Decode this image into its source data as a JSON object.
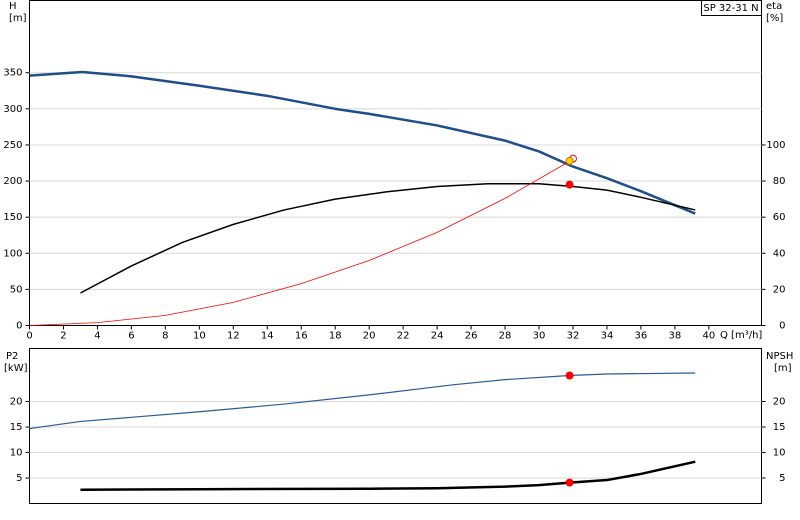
{
  "chart_data": [
    {
      "type": "line",
      "annotation": "SP 32-31 N",
      "ylabel": [
        "H",
        "[m]"
      ],
      "y2label": [
        "eta",
        "[%]"
      ],
      "xlabel": "Q [m³/h]",
      "xlim": [
        0,
        43.1
      ],
      "xticks": [
        0,
        2,
        4,
        6,
        8,
        10,
        12,
        14,
        16,
        18,
        20,
        22,
        24,
        26,
        28,
        30,
        32,
        34,
        36,
        38,
        40
      ],
      "ylim": [
        0,
        450
      ],
      "yticks": [
        0,
        50,
        100,
        150,
        200,
        250,
        300,
        350
      ],
      "y2lim": [
        0,
        180
      ],
      "y2ticks": [
        0,
        20,
        40,
        60,
        80,
        100
      ],
      "grid": true,
      "series": [
        {
          "color": "#1f4e8c",
          "width": 2.5,
          "x": [
            0,
            3.1,
            6,
            10,
            14,
            18,
            20,
            24,
            28,
            30,
            32,
            34,
            36,
            39.2
          ],
          "values": [
            346,
            351,
            345,
            332,
            318,
            300,
            293,
            277,
            256,
            241,
            220,
            204,
            186,
            155
          ]
        },
        {
          "color": "#000000",
          "width": 1.5,
          "axis": "y2",
          "x": [
            3,
            6,
            9,
            12,
            15,
            18,
            21,
            24,
            27,
            30,
            32,
            34,
            36,
            39.2
          ],
          "values": [
            18,
            33,
            46,
            56,
            64,
            70,
            74,
            77,
            78.5,
            78.5,
            77,
            75,
            71,
            64
          ]
        },
        {
          "color": "#ff0000",
          "width": 0.8,
          "x": [
            0,
            4,
            8,
            12,
            16,
            20,
            24,
            28,
            32
          ],
          "values": [
            0,
            4,
            14,
            32,
            58,
            90,
            129,
            176,
            230
          ]
        }
      ],
      "points": [
        {
          "x": 32,
          "y": 231,
          "color": "none",
          "stroke": "#ff0000"
        },
        {
          "x": 31.8,
          "y": 228,
          "color": "#ffd500",
          "stroke": "#e07000"
        },
        {
          "x": 31.8,
          "y": 78,
          "axis": "y2",
          "color": "#ff0000",
          "stroke": "#ff0000"
        }
      ]
    },
    {
      "type": "line",
      "ylabel": [
        "P2",
        "[kW]"
      ],
      "y2label": [
        "NPSH",
        "[m]"
      ],
      "xlim": [
        0,
        43.1
      ],
      "ylim": [
        0,
        30.4
      ],
      "yticks": [
        5,
        10,
        15,
        20
      ],
      "y2lim": [
        0,
        30.4
      ],
      "y2ticks": [
        5,
        10,
        15,
        20
      ],
      "grid": true,
      "series": [
        {
          "color": "#2a5a9a",
          "width": 1.2,
          "x": [
            0,
            3,
            6,
            10,
            15,
            20,
            25,
            28,
            31.8,
            34,
            39.2
          ],
          "values": [
            14.7,
            16.1,
            16.9,
            18.0,
            19.5,
            21.3,
            23.3,
            24.3,
            25.1,
            25.4,
            25.6
          ]
        },
        {
          "color": "#000000",
          "width": 2.5,
          "axis": "y2",
          "x": [
            3,
            10,
            20,
            24,
            28,
            30,
            31.8,
            34,
            36,
            39.2
          ],
          "values": [
            2.7,
            2.8,
            2.9,
            3.0,
            3.3,
            3.6,
            4.1,
            4.6,
            5.8,
            8.2
          ]
        }
      ],
      "points": [
        {
          "x": 31.8,
          "y": 25.1,
          "color": "#ff0000",
          "stroke": "#ff0000"
        },
        {
          "x": 31.8,
          "y": 4.1,
          "axis": "y2",
          "color": "#ff0000",
          "stroke": "#ff0000"
        }
      ]
    }
  ]
}
